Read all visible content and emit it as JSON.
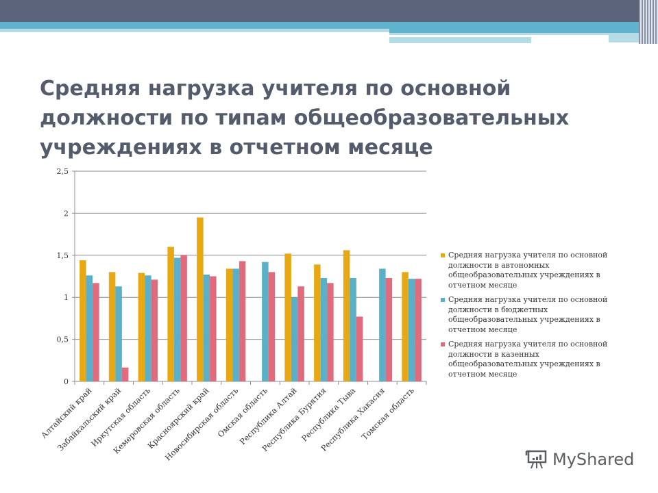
{
  "title": "Средняя нагрузка учителя по основной должности  по типам общеобразовательных учреждениях в отчетном месяце",
  "chart_data": {
    "type": "bar",
    "categories": [
      "Алтайский край",
      "Забайкальский край",
      "Иркутская область",
      "Кемеровская область",
      "Красноярский край",
      "Новосибирская область",
      "Омская область",
      "Республика Алтай",
      "Республика Бурятия",
      "Республика Тыва",
      "Республика Хакасия",
      "Томская область"
    ],
    "series": [
      {
        "name": "Средняя нагрузка учителя по основной должности  в автономных общеобразовательных учреждениях в отчетном месяце",
        "color": "#e8a814",
        "values": [
          1.44,
          1.3,
          1.29,
          1.6,
          1.95,
          1.34,
          null,
          1.52,
          1.39,
          1.56,
          null,
          1.3
        ]
      },
      {
        "name": "Средняя нагрузка учителя по основной должности  в бюджетных общеобразовательных учреждениях в отчетном месяце",
        "color": "#5ab0c8",
        "values": [
          1.26,
          1.13,
          1.26,
          1.47,
          1.27,
          1.34,
          1.42,
          1.0,
          1.23,
          1.23,
          1.34,
          1.22
        ]
      },
      {
        "name": "Средняя нагрузка учителя по основной должности  в казенных общеобразовательных учреждениях в отчетном месяце",
        "color": "#e06b7c",
        "values": [
          1.17,
          0.165,
          1.21,
          1.5,
          1.25,
          1.43,
          1.3,
          1.13,
          1.17,
          0.77,
          1.23,
          1.22
        ]
      }
    ],
    "yticks": [
      "0",
      "0,5",
      "1",
      "1,5",
      "2",
      "2,5"
    ],
    "ylim": [
      0,
      2.5
    ],
    "grid": true,
    "legend": "right"
  },
  "logo": {
    "text": "MyShared",
    "icon": "presentation-board-icon"
  }
}
